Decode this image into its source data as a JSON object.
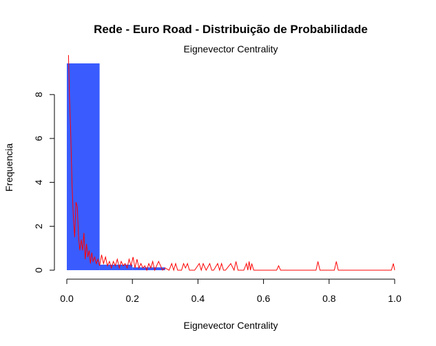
{
  "chart_data": {
    "type": "bar",
    "title": "Rede - Euro Road - Distribuição de Probabilidade",
    "subtitle": "Eignevector Centrality",
    "xlabel": "Eignevector Centrality",
    "ylabel": "Frequencia",
    "xlim": [
      0,
      1
    ],
    "ylim": [
      0,
      9.4
    ],
    "x_ticks": [
      "0.0",
      "0.2",
      "0.4",
      "0.6",
      "0.8",
      "1.0"
    ],
    "y_ticks": [
      "0",
      "2",
      "4",
      "6",
      "8"
    ],
    "bar_color": "#3a5cfe",
    "density_color": "#ff0000",
    "histogram": {
      "bins": [
        [
          0.0,
          0.1
        ],
        [
          0.1,
          0.2
        ],
        [
          0.2,
          0.3
        ]
      ],
      "values": [
        9.42,
        0.25,
        0.13
      ]
    },
    "density": {
      "x": [
        0.005,
        0.008,
        0.012,
        0.016,
        0.02,
        0.024,
        0.028,
        0.032,
        0.036,
        0.04,
        0.044,
        0.048,
        0.052,
        0.056,
        0.06,
        0.064,
        0.068,
        0.072,
        0.076,
        0.08,
        0.085,
        0.09,
        0.095,
        0.1,
        0.106,
        0.112,
        0.118,
        0.124,
        0.13,
        0.136,
        0.142,
        0.148,
        0.154,
        0.16,
        0.166,
        0.172,
        0.178,
        0.184,
        0.19,
        0.196,
        0.202,
        0.208,
        0.214,
        0.22,
        0.226,
        0.232,
        0.238,
        0.244,
        0.25,
        0.256,
        0.262,
        0.268,
        0.274,
        0.28,
        0.286,
        0.292,
        0.3,
        0.312,
        0.32,
        0.326,
        0.332,
        0.338,
        0.35,
        0.356,
        0.362,
        0.368,
        0.374,
        0.39,
        0.404,
        0.41,
        0.416,
        0.425,
        0.436,
        0.442,
        0.448,
        0.46,
        0.466,
        0.472,
        0.478,
        0.484,
        0.5,
        0.51,
        0.516,
        0.522,
        0.54,
        0.548,
        0.552,
        0.556,
        0.56,
        0.564,
        0.57,
        0.6,
        0.64,
        0.646,
        0.652,
        0.7,
        0.76,
        0.766,
        0.772,
        0.8,
        0.816,
        0.822,
        0.828,
        0.9,
        0.99,
        0.996,
        1.0
      ],
      "y": [
        9.8,
        8.0,
        6.2,
        3.9,
        2.4,
        1.5,
        3.1,
        2.9,
        1.5,
        0.9,
        1.4,
        0.9,
        1.7,
        0.5,
        1.2,
        0.6,
        0.9,
        0.3,
        0.8,
        0.4,
        0.6,
        0.3,
        0.5,
        0.2,
        0.7,
        0.3,
        0.6,
        0.2,
        0.4,
        0.1,
        0.4,
        0.2,
        0.5,
        0.1,
        0.4,
        0.2,
        0.3,
        0.1,
        0.5,
        0.2,
        0.6,
        0.1,
        0.5,
        0.1,
        0.3,
        0.1,
        0.2,
        0.0,
        0.3,
        0.1,
        0.4,
        0.0,
        0.2,
        0.4,
        0.2,
        0.0,
        0.1,
        0.0,
        0.3,
        0.0,
        0.3,
        0.0,
        0.0,
        0.3,
        0.1,
        0.3,
        0.0,
        0.0,
        0.3,
        0.0,
        0.3,
        0.0,
        0.3,
        0.0,
        0.0,
        0.3,
        0.0,
        0.3,
        0.0,
        0.0,
        0.3,
        0.0,
        0.4,
        0.0,
        0.0,
        0.3,
        0.0,
        0.4,
        0.0,
        0.3,
        0.0,
        0.0,
        0.0,
        0.2,
        0.0,
        0.0,
        0.0,
        0.4,
        0.0,
        0.0,
        0.0,
        0.4,
        0.0,
        0.0,
        0.0,
        0.3,
        0.0
      ]
    }
  }
}
